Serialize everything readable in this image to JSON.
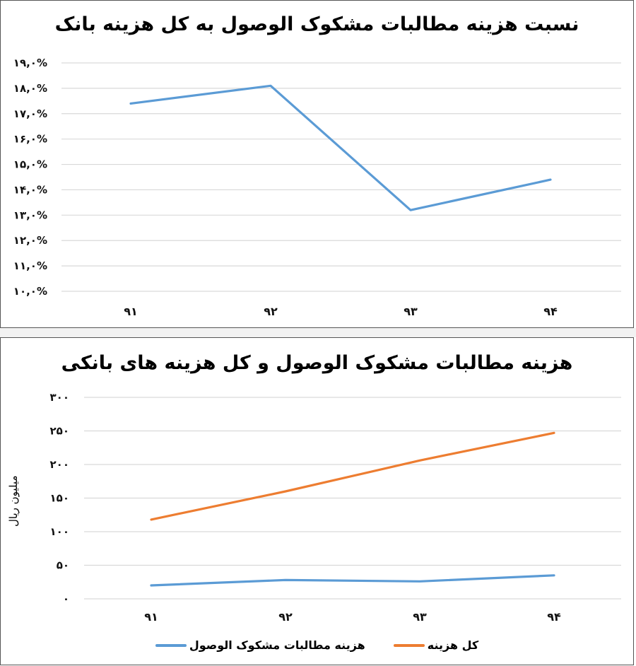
{
  "chart_data": [
    {
      "type": "line",
      "title": "نسبت هزینه مطالبات مشکوک الوصول به کل هزینه بانک",
      "categories": [
        "۹۱",
        "۹۲",
        "۹۳",
        "۹۴"
      ],
      "series": [
        {
          "name": "نسبت هزینه مطالبات مشکوک الوصول",
          "color": "#5B9BD5",
          "values": [
            17.4,
            18.1,
            13.2,
            14.4
          ]
        }
      ],
      "xlabel": "",
      "ylabel": "",
      "ylim": [
        10,
        19
      ],
      "yticks": [
        "۱۹,۰%",
        "۱۸,۰%",
        "۱۷,۰%",
        "۱۶,۰%",
        "۱۵,۰%",
        "۱۴,۰%",
        "۱۳,۰%",
        "۱۲,۰%",
        "۱۱,۰%",
        "۱۰,۰%"
      ],
      "grid": true,
      "legend": "none"
    },
    {
      "type": "line",
      "title": "هزینه مطالبات مشکوک الوصول و کل هزینه های بانکی",
      "categories": [
        "۹۱",
        "۹۲",
        "۹۳",
        "۹۴"
      ],
      "series": [
        {
          "name": "هزینه مطالبات مشکوک الوصول",
          "color": "#5B9BD5",
          "values": [
            20,
            28,
            26,
            35
          ]
        },
        {
          "name": "کل هزینه",
          "color": "#ED7D31",
          "values": [
            118,
            160,
            206,
            247
          ]
        }
      ],
      "xlabel": "",
      "ylabel": "میلیون ریال",
      "ylim": [
        0,
        300
      ],
      "yticks": [
        "۳۰۰",
        "۲۵۰",
        "۲۰۰",
        "۱۵۰",
        "۱۰۰",
        "۵۰",
        "۰"
      ],
      "grid": true,
      "legend": "bottom"
    }
  ],
  "chart1": {
    "title": "نسبت هزینه مطالبات مشکوک الوصول به کل هزینه بانک"
  },
  "chart2": {
    "title": "هزینه مطالبات مشکوک الوصول و کل هزینه های بانکی",
    "ylabel": "میلیون ریال",
    "legend": {
      "total": "کل هزینه",
      "doubtful": "هزینه مطالبات مشکوک الوصول"
    }
  }
}
